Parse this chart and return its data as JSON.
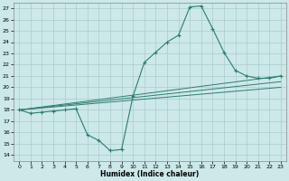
{
  "xlabel": "Humidex (Indice chaleur)",
  "background_color": "#cce8e8",
  "grid_color": "#aacccc",
  "line_color": "#2e7d6e",
  "xlim": [
    -0.5,
    23.5
  ],
  "ylim": [
    13.5,
    27.5
  ],
  "xticks": [
    0,
    1,
    2,
    3,
    4,
    5,
    6,
    7,
    8,
    9,
    10,
    11,
    12,
    13,
    14,
    15,
    16,
    17,
    18,
    19,
    20,
    21,
    22,
    23
  ],
  "yticks": [
    14,
    15,
    16,
    17,
    18,
    19,
    20,
    21,
    22,
    23,
    24,
    25,
    26,
    27
  ],
  "main_line": {
    "x": [
      0,
      1,
      2,
      3,
      4,
      5,
      6,
      7,
      8,
      9,
      10,
      11,
      12,
      13,
      14,
      15,
      16,
      17,
      18,
      19,
      20,
      21,
      22,
      23
    ],
    "y": [
      18.0,
      17.7,
      17.8,
      17.9,
      18.0,
      18.1,
      15.8,
      15.3,
      14.4,
      14.5,
      19.2,
      22.2,
      23.1,
      24.0,
      24.6,
      27.1,
      27.2,
      25.2,
      23.1,
      21.5,
      21.0,
      20.8,
      20.8,
      21.0
    ]
  },
  "trend_lines": [
    {
      "x": [
        0,
        23
      ],
      "y": [
        18.0,
        21.0
      ]
    },
    {
      "x": [
        0,
        23
      ],
      "y": [
        18.0,
        20.5
      ]
    },
    {
      "x": [
        0,
        23
      ],
      "y": [
        18.0,
        20.0
      ]
    }
  ]
}
